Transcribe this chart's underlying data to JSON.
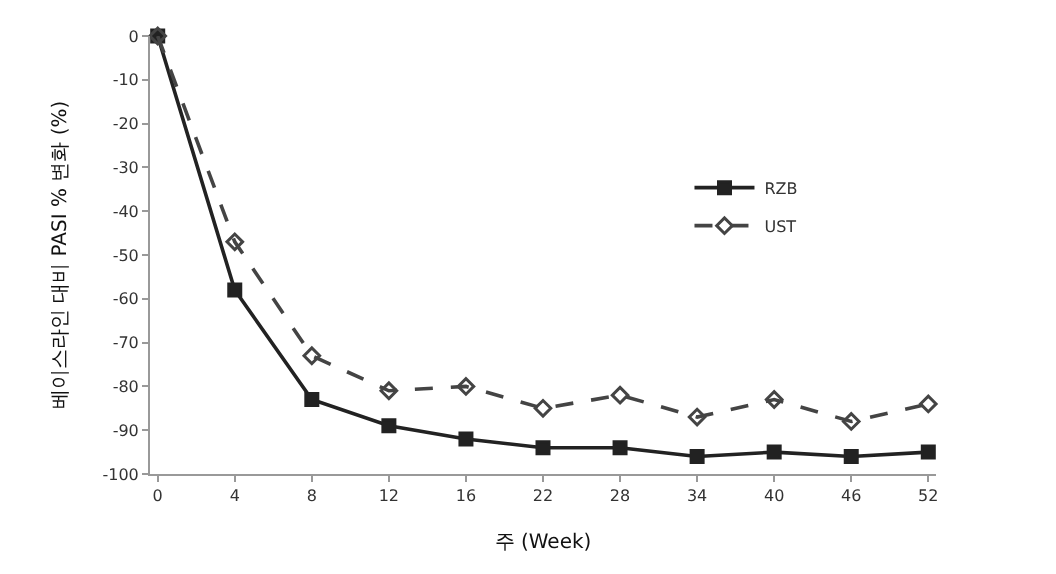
{
  "chart_data": {
    "type": "line",
    "xlabel": "주 (Week)",
    "ylabel": "베이스라인 대비 PASI % 변화 (%)",
    "categories": [
      "0",
      "4",
      "8",
      "12",
      "16",
      "22",
      "28",
      "34",
      "40",
      "46",
      "52"
    ],
    "series": [
      {
        "name": "RZB",
        "color": "#222222",
        "marker": "square",
        "line_style": "solid",
        "values": [
          0,
          -58,
          -83,
          -89,
          -92,
          -94,
          -94,
          -96,
          -95,
          -96,
          -95
        ]
      },
      {
        "name": "UST",
        "color": "#444444",
        "marker": "diamond",
        "line_style": "dashed",
        "values": [
          0,
          -47,
          -73,
          -81,
          -80,
          -85,
          -82,
          -87,
          -83,
          -88,
          -84
        ]
      }
    ],
    "ylim": [
      -100,
      0
    ],
    "yticks": [
      0,
      -10,
      -20,
      -30,
      -40,
      -50,
      -60,
      -70,
      -80,
      -90,
      -100
    ],
    "legend": "top right"
  }
}
